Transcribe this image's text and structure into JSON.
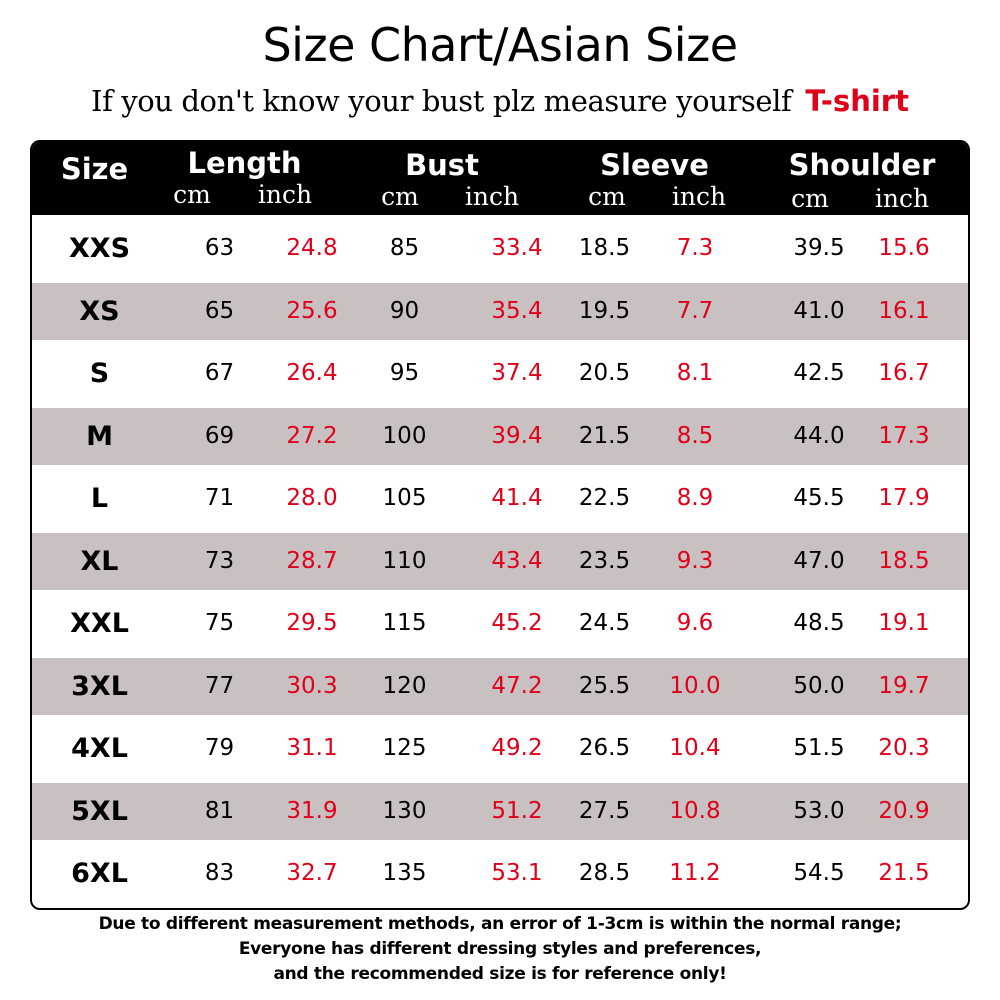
{
  "title": "Size Chart/Asian Size",
  "subtitle": "If you don't know your bust plz measure yourself",
  "tag": "T-shirt",
  "colors": {
    "header_bg": "#000000",
    "shade": "#c9c1c1",
    "inch_text": "#e0001a"
  },
  "chart_data": {
    "type": "table",
    "columns": [
      {
        "label": "Size"
      },
      {
        "label": "Length",
        "units": [
          "cm",
          "inch"
        ]
      },
      {
        "label": "Bust",
        "units": [
          "cm",
          "inch"
        ]
      },
      {
        "label": "Sleeve",
        "units": [
          "cm",
          "inch"
        ]
      },
      {
        "label": "Shoulder",
        "units": [
          "cm",
          "inch"
        ]
      }
    ],
    "rows": [
      [
        "XXS",
        "63",
        "24.8",
        "85",
        "33.4",
        "18.5",
        "7.3",
        "39.5",
        "15.6"
      ],
      [
        "XS",
        "65",
        "25.6",
        "90",
        "35.4",
        "19.5",
        "7.7",
        "41.0",
        "16.1"
      ],
      [
        "S",
        "67",
        "26.4",
        "95",
        "37.4",
        "20.5",
        "8.1",
        "42.5",
        "16.7"
      ],
      [
        "M",
        "69",
        "27.2",
        "100",
        "39.4",
        "21.5",
        "8.5",
        "44.0",
        "17.3"
      ],
      [
        "L",
        "71",
        "28.0",
        "105",
        "41.4",
        "22.5",
        "8.9",
        "45.5",
        "17.9"
      ],
      [
        "XL",
        "73",
        "28.7",
        "110",
        "43.4",
        "23.5",
        "9.3",
        "47.0",
        "18.5"
      ],
      [
        "XXL",
        "75",
        "29.5",
        "115",
        "45.2",
        "24.5",
        "9.6",
        "48.5",
        "19.1"
      ],
      [
        "3XL",
        "77",
        "30.3",
        "120",
        "47.2",
        "25.5",
        "10.0",
        "50.0",
        "19.7"
      ],
      [
        "4XL",
        "79",
        "31.1",
        "125",
        "49.2",
        "26.5",
        "10.4",
        "51.5",
        "20.3"
      ],
      [
        "5XL",
        "81",
        "31.9",
        "130",
        "51.2",
        "27.5",
        "10.8",
        "53.0",
        "20.9"
      ],
      [
        "6XL",
        "83",
        "32.7",
        "135",
        "53.1",
        "28.5",
        "11.2",
        "54.5",
        "21.5"
      ]
    ]
  },
  "footer": [
    "Due to different measurement methods, an error of 1-3cm is within the normal range;",
    "Everyone has different dressing styles and preferences,",
    "and the recommended size is for reference only!"
  ]
}
